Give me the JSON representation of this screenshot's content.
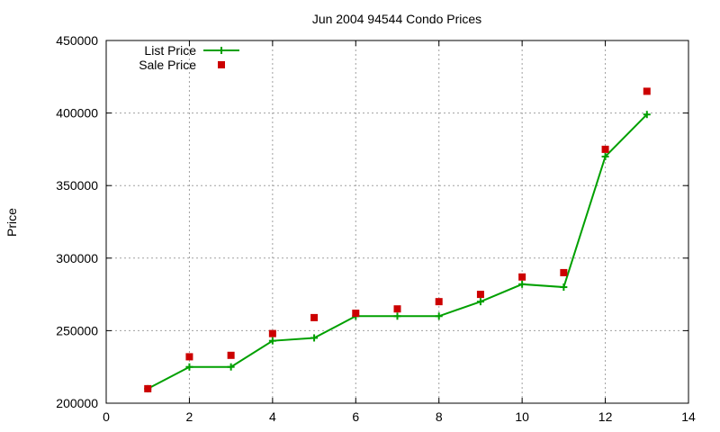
{
  "chart_data": {
    "type": "line",
    "title": "Jun 2004 94544 Condo Prices",
    "xlabel": "",
    "ylabel": "Price",
    "xlim": [
      0,
      14
    ],
    "ylim": [
      200000,
      450000
    ],
    "xticks": [
      0,
      2,
      4,
      6,
      8,
      10,
      12,
      14
    ],
    "yticks": [
      200000,
      250000,
      300000,
      350000,
      400000,
      450000
    ],
    "grid": true,
    "legend_position": "top-left",
    "series": [
      {
        "name": "List Price",
        "style": "line+cross",
        "color": "#00a000",
        "x": [
          1,
          2,
          3,
          4,
          5,
          6,
          7,
          8,
          9,
          10,
          11,
          12,
          13
        ],
        "y": [
          210000,
          225000,
          225000,
          243000,
          245000,
          260000,
          260000,
          260000,
          270000,
          282000,
          280000,
          370000,
          399000
        ]
      },
      {
        "name": "Sale Price",
        "style": "square-points",
        "color": "#cc0000",
        "x": [
          1,
          2,
          3,
          4,
          5,
          6,
          7,
          8,
          9,
          10,
          11,
          12,
          13
        ],
        "y": [
          210000,
          232000,
          233000,
          248000,
          259000,
          262000,
          265000,
          270000,
          275000,
          287000,
          290000,
          375000,
          415000
        ]
      }
    ]
  }
}
